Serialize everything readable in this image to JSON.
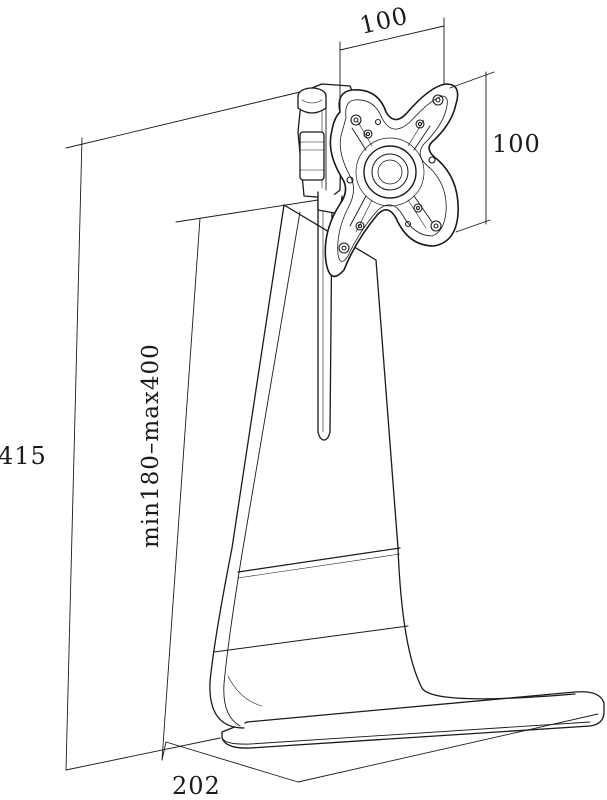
{
  "dimensions": {
    "vesa_width": "100",
    "vesa_height": "100",
    "total_height": "415",
    "height_range": "min180–max400",
    "base_depth": "202"
  },
  "colors": {
    "line": "#1a1a1a",
    "background": "#ffffff",
    "part_fill": "#ffffff"
  }
}
